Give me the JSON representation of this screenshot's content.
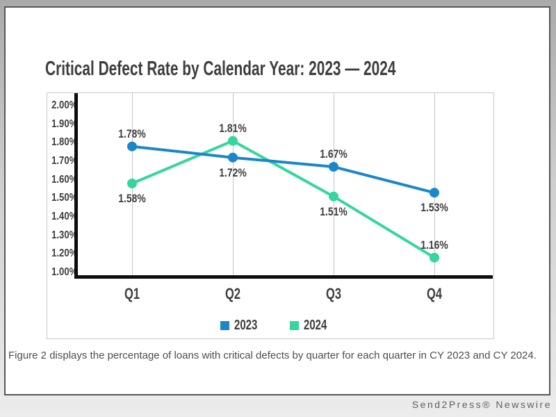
{
  "page": {
    "caption": "Figure 2 displays the percentage of loans with critical defects by quarter for each quarter in CY 2023 and CY 2024.",
    "footer": "Send2Press® Newswire"
  },
  "chart_data": {
    "type": "line",
    "title": "Critical Defect Rate by Calendar Year: 2023 — 2024",
    "xlabel": "",
    "ylabel": "",
    "categories": [
      "Q1",
      "Q2",
      "Q3",
      "Q4"
    ],
    "series": [
      {
        "name": "2023",
        "color": "#1a87c9",
        "values": [
          1.78,
          1.72,
          1.67,
          1.53
        ],
        "point_labels": [
          "1.78%",
          "1.72%",
          "1.67%",
          "1.53%"
        ],
        "label_positions": [
          "above",
          "below",
          "above",
          "below"
        ]
      },
      {
        "name": "2024",
        "color": "#35d69c",
        "values": [
          1.58,
          1.81,
          1.51,
          1.16
        ],
        "point_labels": [
          "1.58%",
          "1.81%",
          "1.51%",
          "1.16%"
        ],
        "label_positions": [
          "below",
          "above",
          "below",
          "above"
        ]
      }
    ],
    "y_axis_ticks": [
      "2.00%",
      "1.90%",
      "1.80%",
      "1.70%",
      "1.60%",
      "1.50%",
      "1.40%",
      "1.30%",
      "1.20%",
      "1.00%"
    ],
    "y_tick_values": [
      2.0,
      1.9,
      1.8,
      1.7,
      1.6,
      1.5,
      1.4,
      1.3,
      1.2,
      1.0
    ],
    "ylim": [
      1.0,
      2.0
    ],
    "grid": "vertical-only",
    "legend_position": "bottom-center",
    "axis_color": "#0d0d0d",
    "grid_color": "#c2c2c2",
    "text_color": "#3d3d3d"
  }
}
